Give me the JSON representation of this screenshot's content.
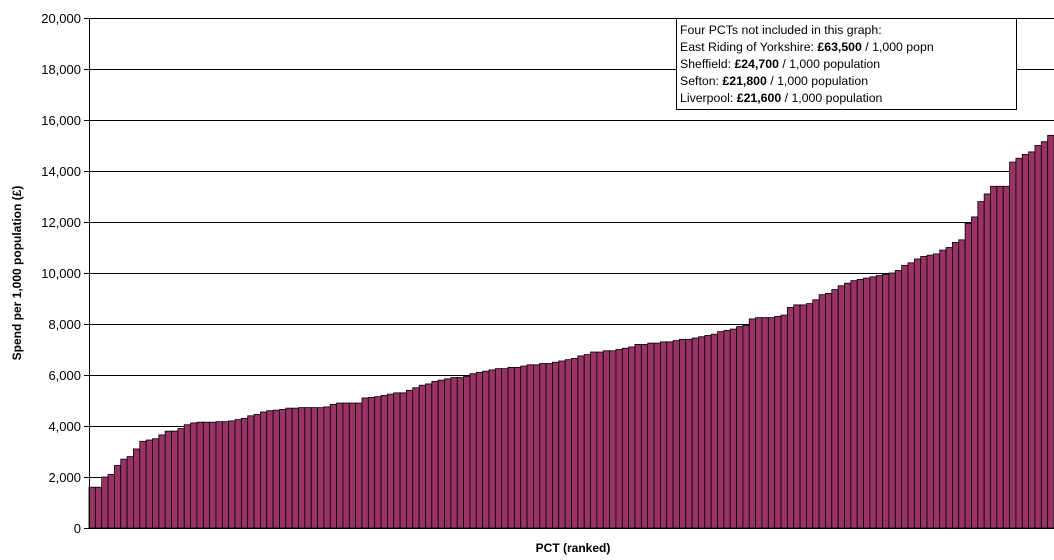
{
  "chart_data": {
    "type": "bar",
    "xlabel": "PCT (ranked)",
    "ylabel": "Spend per 1,000 population (£)",
    "ylim": [
      0,
      20000
    ],
    "yticks": [
      "0",
      "2,000",
      "4,000",
      "6,000",
      "8,000",
      "10,000",
      "12,000",
      "14,000",
      "16,000",
      "18,000",
      "20,000"
    ],
    "grid": true,
    "bar_color": "#993366",
    "values": [
      1600,
      1600,
      2000,
      2100,
      2450,
      2700,
      2800,
      3100,
      3400,
      3450,
      3500,
      3650,
      3800,
      3800,
      3900,
      4050,
      4120,
      4150,
      4150,
      4150,
      4170,
      4170,
      4200,
      4250,
      4300,
      4400,
      4450,
      4550,
      4600,
      4620,
      4650,
      4700,
      4700,
      4720,
      4720,
      4720,
      4720,
      4750,
      4850,
      4900,
      4900,
      4900,
      4900,
      5100,
      5120,
      5150,
      5200,
      5250,
      5300,
      5300,
      5400,
      5500,
      5600,
      5650,
      5750,
      5800,
      5850,
      5900,
      5900,
      5950,
      6050,
      6100,
      6150,
      6200,
      6250,
      6250,
      6300,
      6300,
      6350,
      6400,
      6400,
      6450,
      6450,
      6500,
      6550,
      6600,
      6650,
      6750,
      6800,
      6900,
      6900,
      6950,
      6950,
      7000,
      7050,
      7100,
      7200,
      7200,
      7250,
      7250,
      7300,
      7300,
      7350,
      7400,
      7400,
      7450,
      7500,
      7550,
      7600,
      7700,
      7750,
      7800,
      7900,
      7950,
      8200,
      8250,
      8250,
      8250,
      8300,
      8350,
      8650,
      8750,
      8750,
      8800,
      8950,
      9150,
      9200,
      9350,
      9500,
      9600,
      9700,
      9750,
      9800,
      9850,
      9900,
      9950,
      10000,
      10100,
      10300,
      10400,
      10550,
      10650,
      10700,
      10750,
      10900,
      11000,
      11200,
      11300,
      11950,
      12200,
      12800,
      13100,
      13400,
      13400,
      13400,
      14350,
      14500,
      14650,
      14750,
      15000,
      15150,
      15400
    ],
    "annotation": {
      "heading": "Four PCTs not included in this graph:",
      "items": [
        {
          "name": "East Riding of Yorkshire: ",
          "value": "£63,500",
          "unit": " / 1,000 popn"
        },
        {
          "name": "Sheffield: ",
          "value": "£24,700",
          "unit": " / 1,000 population"
        },
        {
          "name": "Sefton: ",
          "value": "£21,800",
          "unit": " / 1,000 population"
        },
        {
          "name": "Liverpool: ",
          "value": "£21,600",
          "unit": " / 1,000 population"
        }
      ]
    }
  }
}
